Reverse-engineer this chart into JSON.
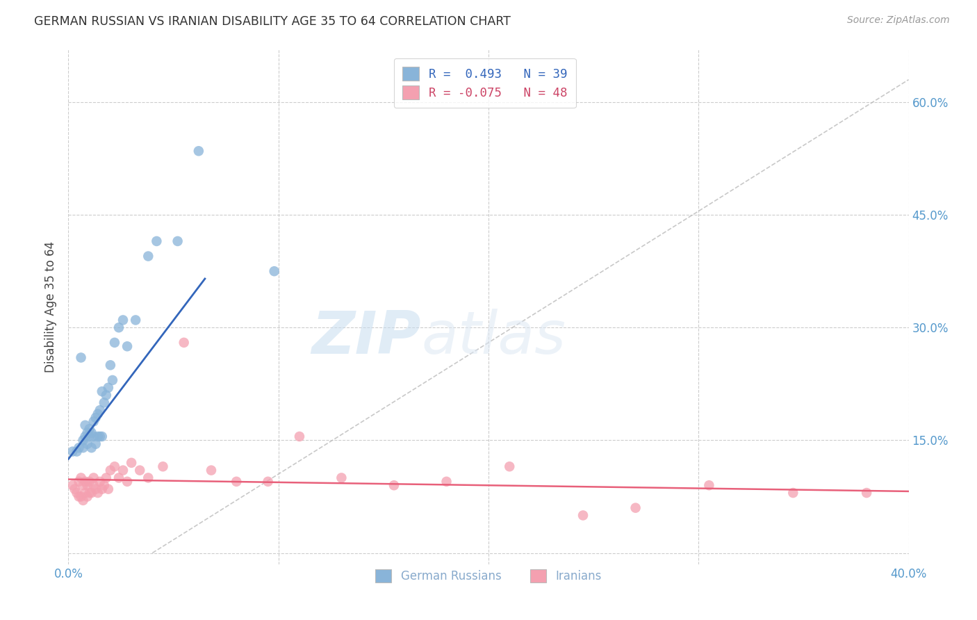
{
  "title": "GERMAN RUSSIAN VS IRANIAN DISABILITY AGE 35 TO 64 CORRELATION CHART",
  "source": "Source: ZipAtlas.com",
  "ylabel": "Disability Age 35 to 64",
  "xlim": [
    0.0,
    0.4
  ],
  "ylim": [
    -0.015,
    0.67
  ],
  "xticks": [
    0.0,
    0.1,
    0.2,
    0.3,
    0.4
  ],
  "ytick_positions": [
    0.0,
    0.15,
    0.3,
    0.45,
    0.6
  ],
  "ytick_labels_right": [
    "",
    "15.0%",
    "30.0%",
    "45.0%",
    "60.0%"
  ],
  "background_color": "#ffffff",
  "grid_color": "#cccccc",
  "blue_color": "#89b4d9",
  "pink_color": "#f4a0b0",
  "blue_line_color": "#3366bb",
  "pink_line_color": "#e8607a",
  "ref_line_color": "#bbbbbb",
  "tick_label_color": "#5599cc",
  "legend_label_blue": "R =  0.493   N = 39",
  "legend_label_pink": "R = -0.075   N = 48",
  "legend_text_color_blue": "#3366bb",
  "legend_text_color_pink": "#cc4466",
  "bottom_legend_color": "#88aacc",
  "german_russian_x": [
    0.002,
    0.004,
    0.005,
    0.006,
    0.007,
    0.007,
    0.008,
    0.008,
    0.009,
    0.009,
    0.01,
    0.01,
    0.011,
    0.011,
    0.012,
    0.012,
    0.013,
    0.013,
    0.014,
    0.014,
    0.015,
    0.015,
    0.016,
    0.016,
    0.017,
    0.018,
    0.019,
    0.02,
    0.021,
    0.022,
    0.024,
    0.026,
    0.028,
    0.032,
    0.038,
    0.042,
    0.052,
    0.062,
    0.098
  ],
  "german_russian_y": [
    0.135,
    0.135,
    0.14,
    0.26,
    0.14,
    0.15,
    0.155,
    0.17,
    0.145,
    0.16,
    0.155,
    0.165,
    0.14,
    0.16,
    0.155,
    0.175,
    0.145,
    0.18,
    0.155,
    0.185,
    0.155,
    0.19,
    0.155,
    0.215,
    0.2,
    0.21,
    0.22,
    0.25,
    0.23,
    0.28,
    0.3,
    0.31,
    0.275,
    0.31,
    0.395,
    0.415,
    0.415,
    0.535,
    0.375
  ],
  "iranian_x": [
    0.002,
    0.003,
    0.004,
    0.005,
    0.005,
    0.006,
    0.006,
    0.007,
    0.007,
    0.008,
    0.008,
    0.009,
    0.009,
    0.01,
    0.01,
    0.011,
    0.012,
    0.012,
    0.013,
    0.014,
    0.015,
    0.016,
    0.017,
    0.018,
    0.019,
    0.02,
    0.022,
    0.024,
    0.026,
    0.028,
    0.03,
    0.034,
    0.038,
    0.045,
    0.055,
    0.068,
    0.08,
    0.095,
    0.11,
    0.13,
    0.155,
    0.18,
    0.21,
    0.245,
    0.27,
    0.305,
    0.345,
    0.38
  ],
  "iranian_y": [
    0.09,
    0.085,
    0.08,
    0.075,
    0.095,
    0.075,
    0.1,
    0.07,
    0.09,
    0.08,
    0.095,
    0.075,
    0.09,
    0.08,
    0.095,
    0.08,
    0.09,
    0.1,
    0.085,
    0.08,
    0.095,
    0.085,
    0.09,
    0.1,
    0.085,
    0.11,
    0.115,
    0.1,
    0.11,
    0.095,
    0.12,
    0.11,
    0.1,
    0.115,
    0.28,
    0.11,
    0.095,
    0.095,
    0.155,
    0.1,
    0.09,
    0.095,
    0.115,
    0.05,
    0.06,
    0.09,
    0.08,
    0.08
  ],
  "blue_trend_x0": 0.0,
  "blue_trend_y0": 0.125,
  "blue_trend_x1": 0.065,
  "blue_trend_y1": 0.365,
  "pink_trend_x0": 0.0,
  "pink_trend_y0": 0.098,
  "pink_trend_x1": 0.4,
  "pink_trend_y1": 0.082,
  "ref_line_x0": 0.04,
  "ref_line_y0": 0.0,
  "ref_line_x1": 0.4,
  "ref_line_y1": 0.63
}
